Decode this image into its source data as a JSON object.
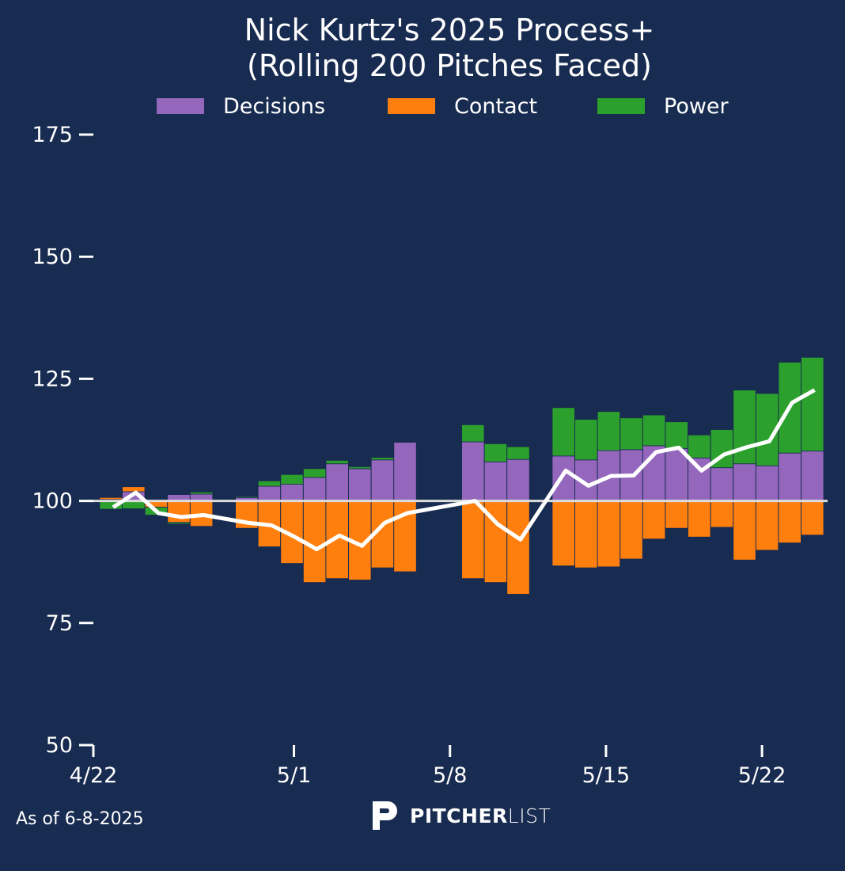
{
  "chart_data": {
    "type": "bar",
    "title_line1": "Nick Kurtz's 2025 Process+",
    "title_line2": "(Rolling 200 Pitches Faced)",
    "legend": [
      {
        "label": "Decisions",
        "color": "#9467bd"
      },
      {
        "label": "Contact",
        "color": "#ff7f0e"
      },
      {
        "label": "Power",
        "color": "#2ca02c"
      }
    ],
    "line_color": "#ffffff",
    "baseline": 100,
    "ylim": [
      50,
      175
    ],
    "yticks": [
      50,
      75,
      100,
      125,
      150,
      175
    ],
    "xticks": [
      {
        "label": "4/22",
        "day": 0
      },
      {
        "label": "5/1",
        "day": 9
      },
      {
        "label": "5/8",
        "day": 16
      },
      {
        "label": "5/15",
        "day": 23
      },
      {
        "label": "5/22",
        "day": 30
      }
    ],
    "series_note": "day = days since 4/22; decisions/contact/power are deltas from 100; process_plus is the line",
    "points": [
      {
        "day": 1,
        "decisions": 0.3,
        "contact": 0.4,
        "power": -1.7,
        "process_plus": 98.7
      },
      {
        "day": 2,
        "decisions": 1.9,
        "contact": 1.0,
        "power": -1.6,
        "process_plus": 101.7
      },
      {
        "day": 3,
        "decisions": 0.0,
        "contact": -1.3,
        "power": -1.6,
        "process_plus": 97.5
      },
      {
        "day": 4,
        "decisions": 1.3,
        "contact": -4.4,
        "power": -0.3,
        "process_plus": 96.7
      },
      {
        "day": 5,
        "decisions": 1.4,
        "contact": -5.2,
        "power": 0.4,
        "process_plus": 97.1
      },
      {
        "day": 7,
        "decisions": 0.7,
        "contact": -5.6,
        "power": 0.2,
        "process_plus": 95.5
      },
      {
        "day": 8,
        "decisions": 3.0,
        "contact": -9.4,
        "power": 1.1,
        "process_plus": 95.0
      },
      {
        "day": 9,
        "decisions": 3.4,
        "contact": -12.8,
        "power": 2.0,
        "process_plus": 92.7
      },
      {
        "day": 10,
        "decisions": 4.8,
        "contact": -16.7,
        "power": 1.8,
        "process_plus": 90.1
      },
      {
        "day": 11,
        "decisions": 7.6,
        "contact": -15.9,
        "power": 0.7,
        "process_plus": 92.9
      },
      {
        "day": 12,
        "decisions": 6.6,
        "contact": -16.2,
        "power": 0.4,
        "process_plus": 90.8
      },
      {
        "day": 13,
        "decisions": 8.4,
        "contact": -13.7,
        "power": 0.5,
        "process_plus": 95.5
      },
      {
        "day": 14,
        "decisions": 12.0,
        "contact": -14.5,
        "power": 0.0,
        "process_plus": 97.5
      },
      {
        "day": 17,
        "decisions": 12.1,
        "contact": -15.9,
        "power": 3.5,
        "process_plus": 100.0
      },
      {
        "day": 18,
        "decisions": 8.0,
        "contact": -16.7,
        "power": 3.7,
        "process_plus": 95.2
      },
      {
        "day": 19,
        "decisions": 8.5,
        "contact": -19.1,
        "power": 2.6,
        "process_plus": 92.1
      },
      {
        "day": 21,
        "decisions": 9.2,
        "contact": -13.3,
        "power": 9.9,
        "process_plus": 106.2
      },
      {
        "day": 22,
        "decisions": 8.4,
        "contact": -13.7,
        "power": 8.3,
        "process_plus": 103.1
      },
      {
        "day": 23,
        "decisions": 10.3,
        "contact": -13.5,
        "power": 8.0,
        "process_plus": 105.1
      },
      {
        "day": 24,
        "decisions": 10.5,
        "contact": -11.9,
        "power": 6.5,
        "process_plus": 105.2
      },
      {
        "day": 25,
        "decisions": 11.3,
        "contact": -7.8,
        "power": 6.3,
        "process_plus": 110.0
      },
      {
        "day": 26,
        "decisions": 10.7,
        "contact": -5.6,
        "power": 5.5,
        "process_plus": 110.9
      },
      {
        "day": 27,
        "decisions": 8.8,
        "contact": -7.4,
        "power": 4.7,
        "process_plus": 106.2
      },
      {
        "day": 28,
        "decisions": 6.8,
        "contact": -5.4,
        "power": 7.8,
        "process_plus": 109.5
      },
      {
        "day": 29,
        "decisions": 7.6,
        "contact": -12.1,
        "power": 15.1,
        "process_plus": 111.0
      },
      {
        "day": 30,
        "decisions": 7.2,
        "contact": -10.1,
        "power": 14.8,
        "process_plus": 112.2
      },
      {
        "day": 31,
        "decisions": 9.8,
        "contact": -8.6,
        "power": 18.6,
        "process_plus": 120.1
      },
      {
        "day": 32,
        "decisions": 10.2,
        "contact": -7.0,
        "power": 19.2,
        "process_plus": 122.7
      }
    ]
  },
  "footer": {
    "as_of": "As of 6-8-2025"
  },
  "logo": {
    "bold": "PITCHER",
    "light": "LIST"
  }
}
